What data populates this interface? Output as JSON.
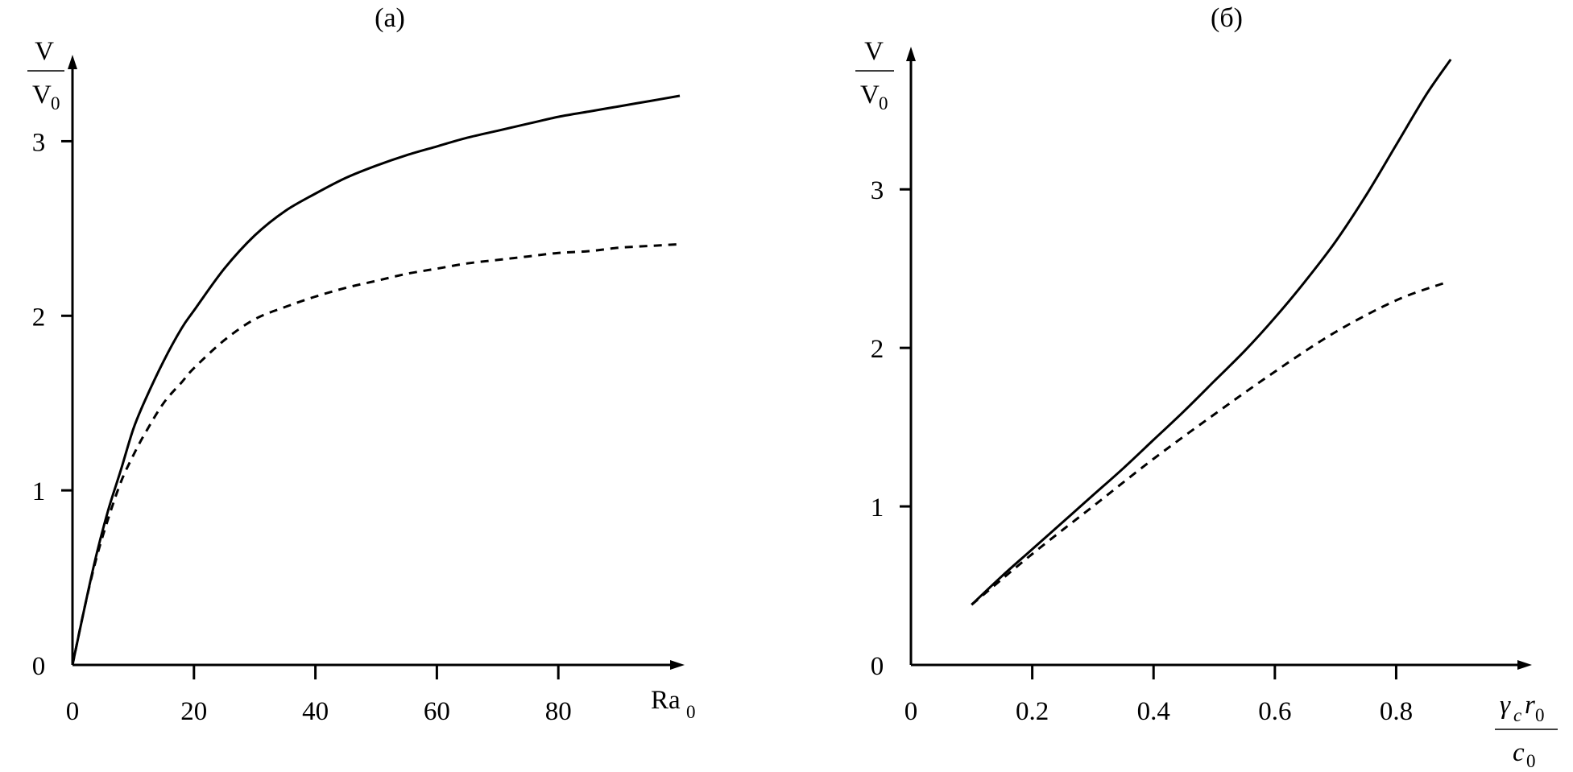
{
  "chart_data": [
    {
      "type": "line",
      "title": "(а)",
      "xlabel": {
        "main": "Ra",
        "sub": "0"
      },
      "ylabel": {
        "num": "V",
        "den_main": "V",
        "den_sub": "0"
      },
      "xlim": [
        0,
        100
      ],
      "ylim": [
        0,
        3.5
      ],
      "xticks": [
        0,
        20,
        40,
        60,
        80
      ],
      "xtick_labels": [
        "0",
        "20",
        "40",
        "60",
        "80"
      ],
      "yticks": [
        0,
        1,
        2,
        3
      ],
      "ytick_labels": [
        "0",
        "1",
        "2",
        "3"
      ],
      "grid": false,
      "series": [
        {
          "style": "solid",
          "x": [
            0,
            2,
            4,
            6,
            8,
            10,
            12,
            15,
            18,
            20,
            25,
            30,
            35,
            40,
            45,
            50,
            55,
            60,
            65,
            70,
            75,
            80,
            85,
            90,
            95,
            100
          ],
          "y": [
            0,
            0.33,
            0.64,
            0.9,
            1.12,
            1.35,
            1.52,
            1.74,
            1.93,
            2.03,
            2.27,
            2.46,
            2.6,
            2.7,
            2.79,
            2.86,
            2.92,
            2.97,
            3.02,
            3.06,
            3.1,
            3.14,
            3.17,
            3.2,
            3.23,
            3.26
          ]
        },
        {
          "style": "dashed",
          "x": [
            0,
            2,
            4,
            6,
            8,
            10,
            12,
            15,
            18,
            20,
            25,
            30,
            35,
            40,
            45,
            50,
            55,
            60,
            65,
            70,
            75,
            80,
            85,
            90,
            95,
            100
          ],
          "y": [
            0,
            0.33,
            0.62,
            0.85,
            1.05,
            1.2,
            1.33,
            1.5,
            1.62,
            1.7,
            1.86,
            1.98,
            2.05,
            2.11,
            2.16,
            2.2,
            2.24,
            2.27,
            2.3,
            2.32,
            2.34,
            2.36,
            2.37,
            2.39,
            2.4,
            2.41
          ]
        }
      ]
    },
    {
      "type": "line",
      "title": "(б)",
      "xlabel": {
        "num_gamma": "γ",
        "num_gamma_sub": "c",
        "num_r": "r",
        "num_r_sub": "0",
        "den_main": "c",
        "den_sub": "0"
      },
      "ylabel": {
        "num": "V",
        "den_main": "V",
        "den_sub": "0"
      },
      "xlim": [
        0,
        0.98
      ],
      "ylim": [
        0,
        3.9
      ],
      "xticks": [
        0,
        0.2,
        0.4,
        0.6,
        0.8
      ],
      "xtick_labels": [
        "0",
        "0.2",
        "0.4",
        "0.6",
        "0.8"
      ],
      "yticks": [
        0,
        1,
        2,
        3
      ],
      "ytick_labels": [
        "0",
        "1",
        "2",
        "3"
      ],
      "grid": false,
      "series": [
        {
          "style": "solid",
          "x": [
            0.1,
            0.15,
            0.2,
            0.25,
            0.3,
            0.35,
            0.4,
            0.45,
            0.5,
            0.55,
            0.6,
            0.65,
            0.7,
            0.75,
            0.8,
            0.85,
            0.89
          ],
          "y": [
            0.38,
            0.56,
            0.73,
            0.9,
            1.07,
            1.24,
            1.42,
            1.6,
            1.79,
            1.98,
            2.19,
            2.42,
            2.67,
            2.96,
            3.28,
            3.6,
            3.82
          ]
        },
        {
          "style": "dashed",
          "x": [
            0.1,
            0.2,
            0.3,
            0.4,
            0.5,
            0.6,
            0.7,
            0.8,
            0.88
          ],
          "y": [
            0.38,
            0.7,
            1.0,
            1.3,
            1.58,
            1.85,
            2.1,
            2.3,
            2.41
          ]
        }
      ]
    }
  ]
}
